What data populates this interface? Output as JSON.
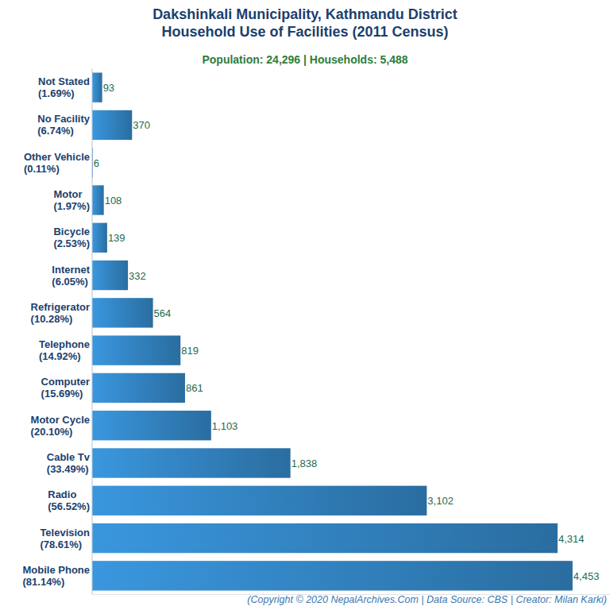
{
  "chart_data": {
    "type": "bar",
    "orientation": "horizontal",
    "title": [
      "Dakshinkali Municipality, Kathmandu District",
      "Household Use of Facilities (2011 Census)"
    ],
    "subtitle": "Population: 24,296 | Households: 5,488",
    "caption": "(Copyright © 2020 NepalArchives.Com | Data Source: CBS | Creator: Milan Karki)",
    "categories": [
      "Not Stated",
      "No Facility",
      "Other Vehicle",
      "Motor",
      "Bicycle",
      "Internet",
      "Refrigerator",
      "Telephone",
      "Computer",
      "Motor Cycle",
      "Cable Tv",
      "Radio",
      "Television",
      "Mobile Phone"
    ],
    "category_shares": [
      "(1.69%)",
      "(6.74%)",
      "(0.11%)",
      "(1.97%)",
      "(2.53%)",
      "(6.05%)",
      "(10.28%)",
      "(14.92%)",
      "(15.69%)",
      "(20.10%)",
      "(33.49%)",
      "(56.52%)",
      "(78.61%)",
      "(81.14%)"
    ],
    "values": [
      93,
      370,
      6,
      108,
      139,
      332,
      564,
      819,
      861,
      1103,
      1838,
      3102,
      4314,
      4453
    ],
    "value_labels": [
      "93",
      "370",
      "6",
      "108",
      "139",
      "332",
      "564",
      "819",
      "861",
      "1,103",
      "1,838",
      "3,102",
      "4,314",
      "4,453"
    ],
    "data_labels": true,
    "tick_labels": "y",
    "grid": false,
    "color": "#3a97de",
    "xlim": [
      0,
      4800
    ]
  }
}
